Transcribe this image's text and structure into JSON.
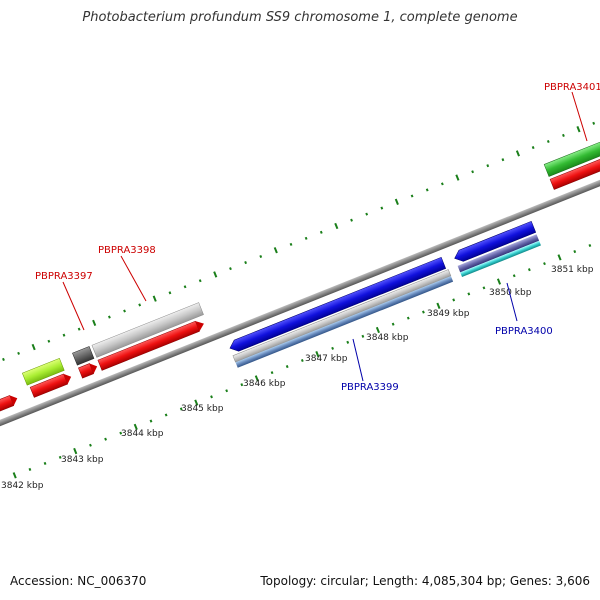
{
  "title": "Photobacterium profundum SS9 chromosome 1, complete genome",
  "footer": {
    "accession": "Accession: NC_006370",
    "summary": "Topology: circular; Length: 4,085,304 bp; Genes: 3,606"
  },
  "colors": {
    "backbone": "#888888",
    "tick": "#1a7f1a",
    "forward_label": "#cc0000",
    "reverse_label": "#0000aa"
  },
  "ticks": [
    "3842 kbp",
    "3843 kbp",
    "3844 kbp",
    "3845 kbp",
    "3846 kbp",
    "3847 kbp",
    "3848 kbp",
    "3849 kbp",
    "3850 kbp",
    "3851 kbp"
  ],
  "gene_labels": {
    "PBPRA3397": "PBPRA3397",
    "PBPRA3398": "PBPRA3398",
    "PBPRA3399": "PBPRA3399",
    "PBPRA3400": "PBPRA3400",
    "PBPRA3401": "PBPRA3401"
  }
}
